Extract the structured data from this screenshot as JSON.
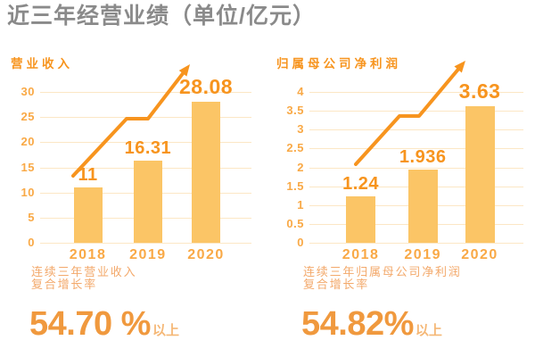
{
  "title": "近三年经营业绩（单位/亿元）",
  "colors": {
    "title_gray": "#8A8A8A",
    "orange_strong": "#F7941E",
    "orange_tick": "#F9A946",
    "bar_fill": "#FBC566",
    "gridline": "#FCE7C5",
    "desc_text": "#F3A96B",
    "pct_number": "#F0993E",
    "pct_suffix": "#F5B877"
  },
  "chart_data": [
    {
      "type": "bar",
      "title": "营业收入",
      "categories": [
        "2018",
        "2019",
        "2020"
      ],
      "values": [
        11,
        16.31,
        28.08
      ],
      "value_labels": [
        "11",
        "16.31",
        "28.08"
      ],
      "yticks": [
        "0",
        "5",
        "10",
        "15",
        "20",
        "25",
        "30"
      ],
      "ylim": [
        0,
        30
      ],
      "grid": true,
      "annotation": "growth-arrow",
      "footnote_line1": "连续三年营业收入",
      "footnote_line2": "复合增长率",
      "highlight_value": "54.70 %",
      "highlight_suffix": "以上"
    },
    {
      "type": "bar",
      "title": "归属母公司净利润",
      "categories": [
        "2018",
        "2019",
        "2020"
      ],
      "values": [
        1.24,
        1.936,
        3.63
      ],
      "value_labels": [
        "1.24",
        "1.936",
        "3.63"
      ],
      "yticks": [
        "0",
        "0.5",
        "1",
        "1.5",
        "2",
        "2.5",
        "3",
        "3.5",
        "4"
      ],
      "ylim": [
        0,
        4
      ],
      "grid": true,
      "annotation": "growth-arrow",
      "footnote_line1": "连续三年归属母公司净利润",
      "footnote_line2": "复合增长率",
      "highlight_value": "54.82%",
      "highlight_suffix": "以上"
    }
  ]
}
